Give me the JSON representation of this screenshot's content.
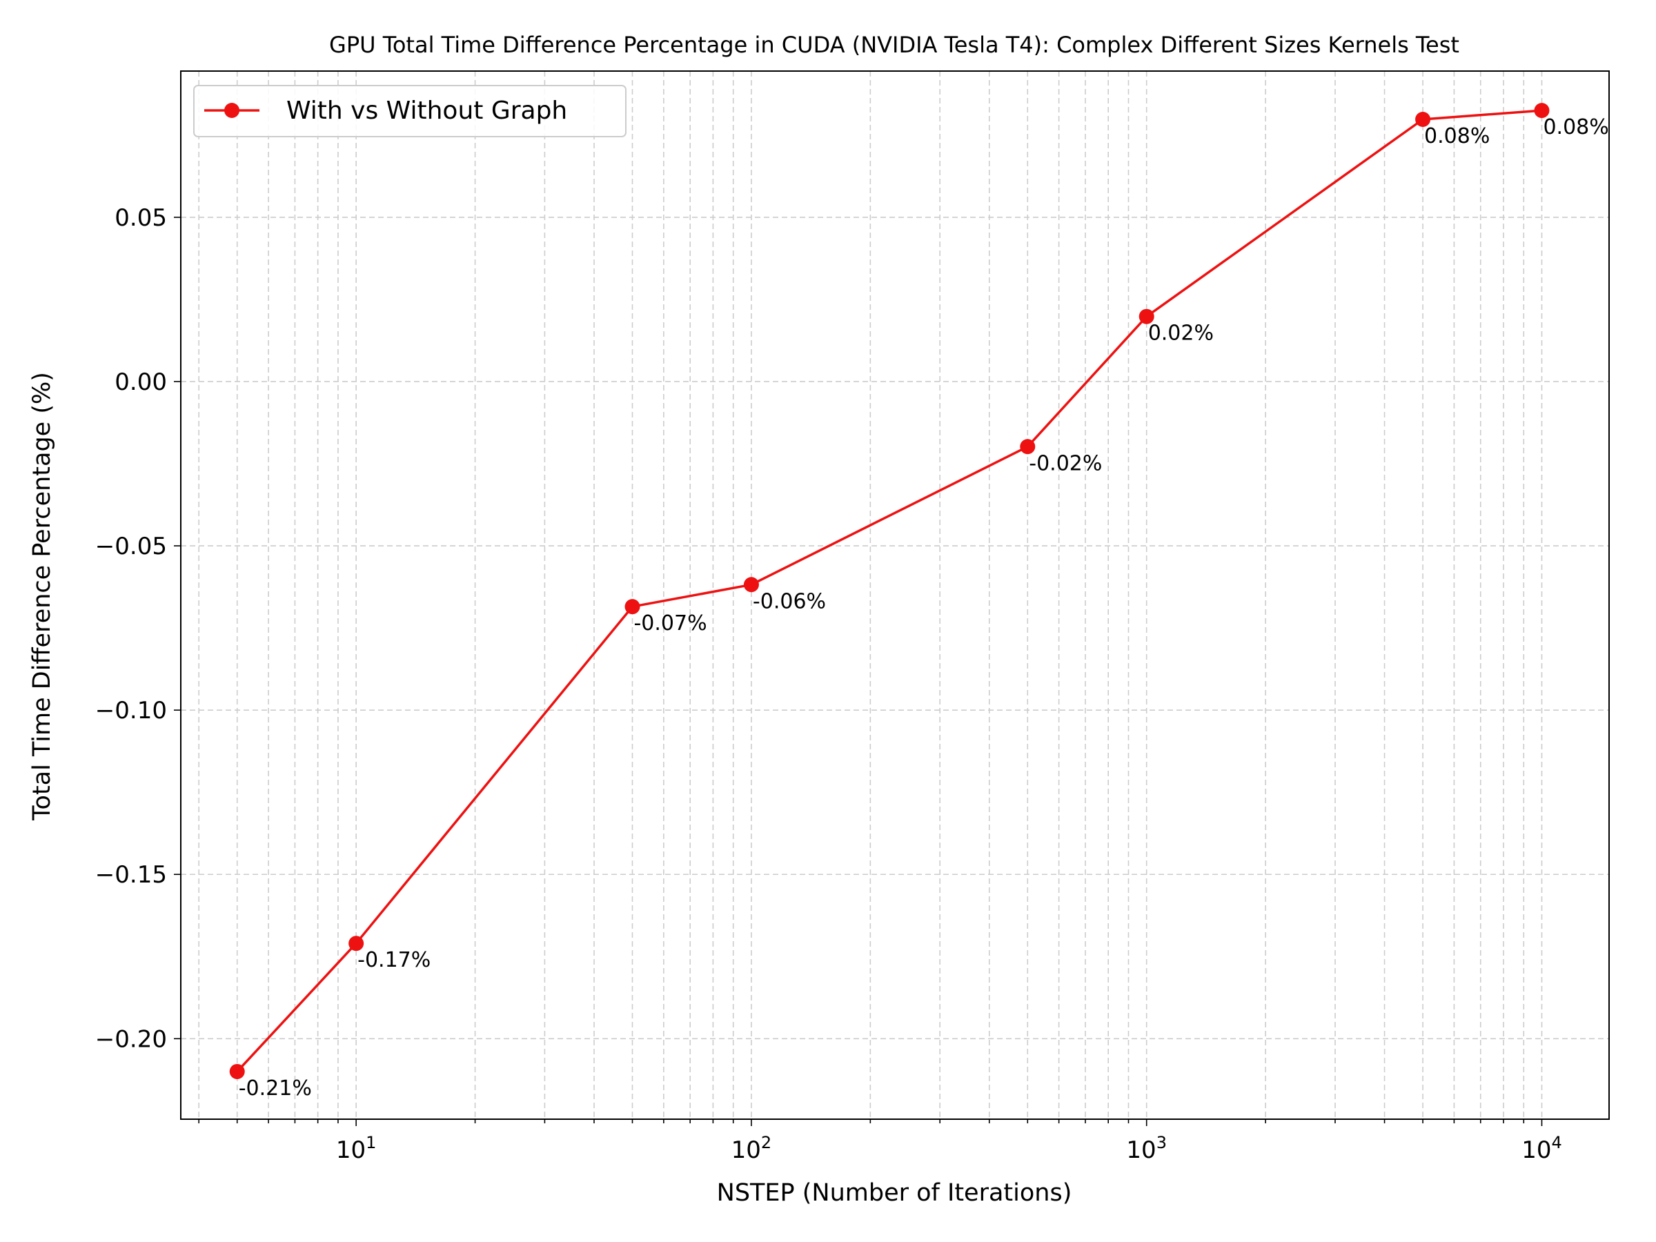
{
  "chart_data": {
    "type": "line",
    "title": "GPU Total Time Difference Percentage in CUDA (NVIDIA Tesla T4): Complex Different Sizes Kernels Test",
    "xlabel": "NSTEP (Number of Iterations)",
    "ylabel": "Total Time Difference Percentage (%)",
    "x_scale": "log",
    "xlim": [
      3.6,
      14800
    ],
    "ylim": [
      -0.2245,
      0.0945
    ],
    "x_ticks": [
      {
        "value": 10,
        "base": "10",
        "exp": "1"
      },
      {
        "value": 100,
        "base": "10",
        "exp": "2"
      },
      {
        "value": 1000,
        "base": "10",
        "exp": "3"
      },
      {
        "value": 10000,
        "base": "10",
        "exp": "4"
      }
    ],
    "y_ticks": [
      {
        "value": 0.05,
        "label": "0.05"
      },
      {
        "value": 0.0,
        "label": "0.00"
      },
      {
        "value": -0.05,
        "label": "−0.05"
      },
      {
        "value": -0.1,
        "label": "−0.10"
      },
      {
        "value": -0.15,
        "label": "−0.15"
      },
      {
        "value": -0.2,
        "label": "−0.20"
      }
    ],
    "grid": true,
    "grid_minor_x": true,
    "legend_position": "upper-left",
    "series": [
      {
        "name": "With vs Without Graph",
        "color": "#ee1111",
        "marker": "circle",
        "x": [
          5,
          10,
          50,
          100,
          500,
          1000,
          5000,
          10000
        ],
        "y": [
          -0.21,
          -0.171,
          -0.0685,
          -0.0618,
          -0.0198,
          0.0198,
          0.0798,
          0.0825
        ],
        "labels": [
          "-0.21%",
          "-0.17%",
          "-0.07%",
          "-0.06%",
          "-0.02%",
          "0.02%",
          "0.08%",
          "0.08%"
        ]
      }
    ]
  }
}
